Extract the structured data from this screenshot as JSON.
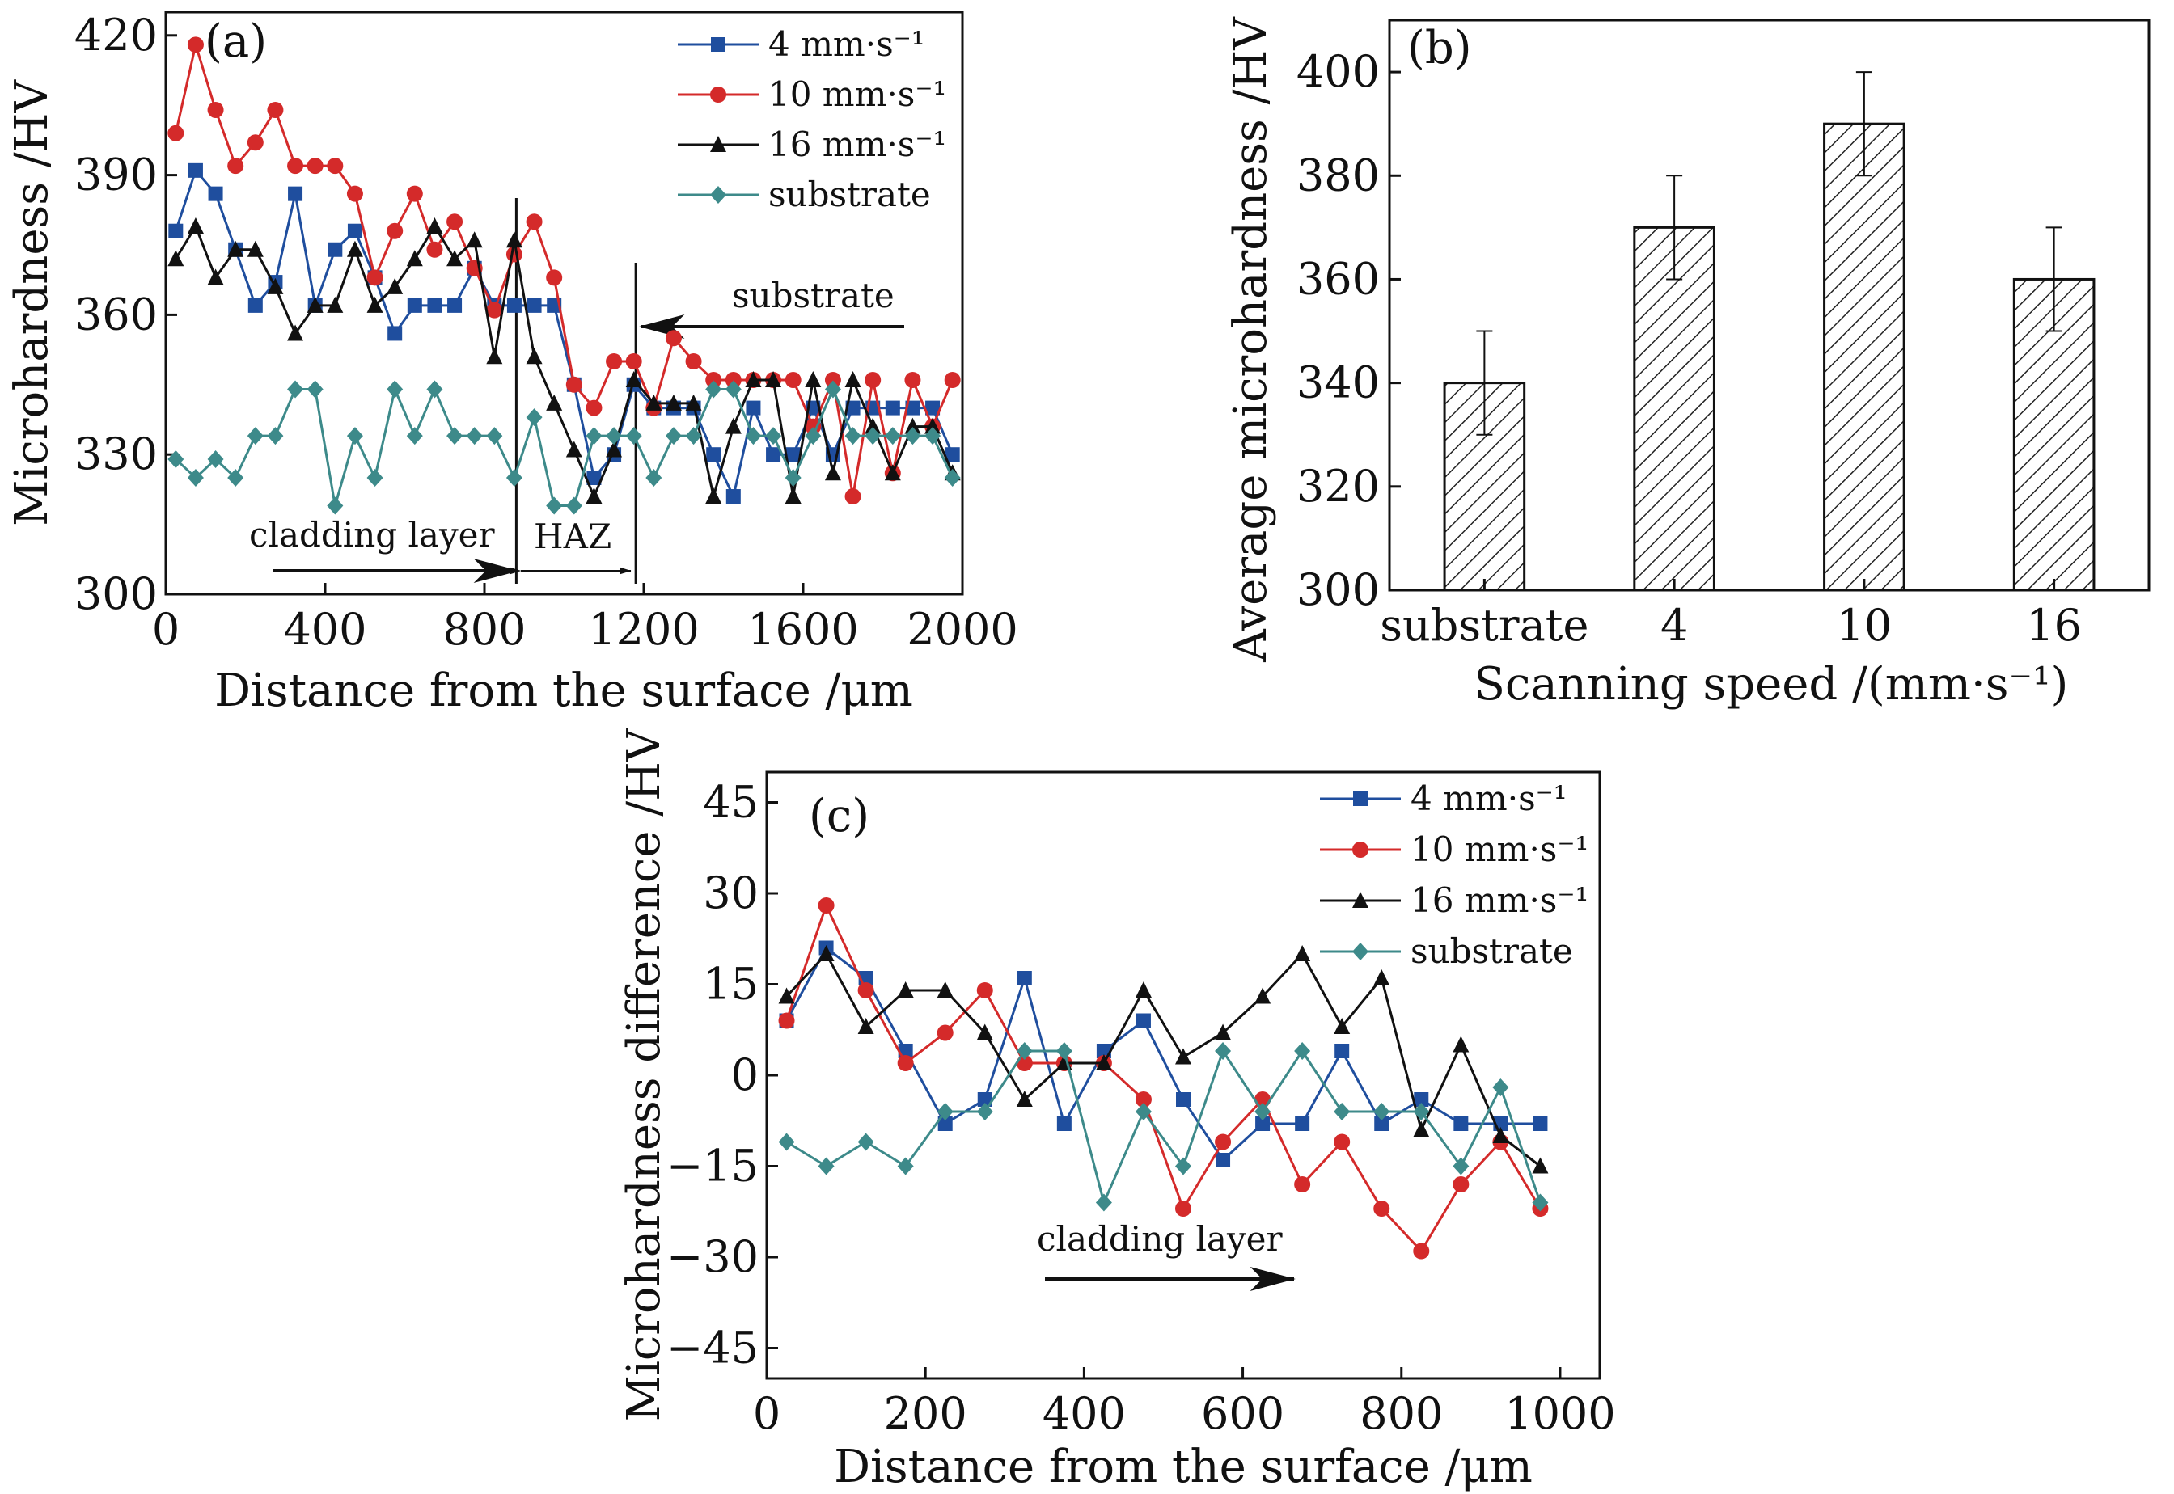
{
  "chart_data": [
    {
      "id": "a",
      "type": "line",
      "panel_label": "(a)",
      "xlabel": "Distance from the surface /μm",
      "ylabel": "Microhardness /HV",
      "xlim": [
        0,
        2000
      ],
      "ylim": [
        300,
        425
      ],
      "xticks": [
        0,
        400,
        800,
        1200,
        1600,
        2000
      ],
      "xtick_labels": [
        "0",
        "400",
        "800",
        "1200",
        "1600",
        "2000"
      ],
      "yticks": [
        300,
        330,
        360,
        390,
        420
      ],
      "ytick_labels": [
        "300",
        "330",
        "360",
        "390",
        "420"
      ],
      "grid": false,
      "legend_position": "top-right",
      "series": [
        {
          "name": "4 mm·s⁻¹",
          "color": "#1f4e9e",
          "marker": "square",
          "x": [
            25,
            75,
            125,
            175,
            225,
            275,
            325,
            375,
            425,
            475,
            525,
            575,
            625,
            675,
            725,
            775,
            825,
            875,
            925,
            975,
            1025,
            1075,
            1125,
            1175,
            1225,
            1275,
            1325,
            1375,
            1425,
            1475,
            1525,
            1575,
            1625,
            1675,
            1725,
            1775,
            1825,
            1875,
            1925,
            1975
          ],
          "y": [
            378,
            391,
            386,
            374,
            362,
            367,
            386,
            362,
            374,
            378,
            368,
            356,
            362,
            362,
            362,
            370,
            362,
            362,
            362,
            362,
            345,
            325,
            330,
            345,
            340,
            340,
            340,
            330,
            321,
            340,
            330,
            330,
            340,
            330,
            340,
            340,
            340,
            340,
            340,
            330
          ]
        },
        {
          "name": "10 mm·s⁻¹",
          "color": "#d42a2a",
          "marker": "circle",
          "x": [
            25,
            75,
            125,
            175,
            225,
            275,
            325,
            375,
            425,
            475,
            525,
            575,
            625,
            675,
            725,
            775,
            825,
            875,
            925,
            975,
            1025,
            1075,
            1125,
            1175,
            1225,
            1275,
            1325,
            1375,
            1425,
            1475,
            1525,
            1575,
            1625,
            1675,
            1725,
            1775,
            1825,
            1875,
            1925,
            1975
          ],
          "y": [
            399,
            418,
            404,
            392,
            397,
            404,
            392,
            392,
            392,
            386,
            368,
            378,
            386,
            374,
            380,
            370,
            361,
            373,
            380,
            368,
            345,
            340,
            350,
            350,
            340,
            355,
            350,
            346,
            346,
            346,
            346,
            346,
            336,
            346,
            321,
            346,
            326,
            346,
            336,
            346
          ]
        },
        {
          "name": "16 mm·s⁻¹",
          "color": "#111111",
          "marker": "triangle",
          "x": [
            25,
            75,
            125,
            175,
            225,
            275,
            325,
            375,
            425,
            475,
            525,
            575,
            625,
            675,
            725,
            775,
            825,
            875,
            925,
            975,
            1025,
            1075,
            1125,
            1175,
            1225,
            1275,
            1325,
            1375,
            1425,
            1475,
            1525,
            1575,
            1625,
            1675,
            1725,
            1775,
            1825,
            1875,
            1925,
            1975
          ],
          "y": [
            372,
            379,
            368,
            374,
            374,
            366,
            356,
            362,
            362,
            374,
            362,
            366,
            372,
            379,
            372,
            376,
            351,
            376,
            351,
            341,
            331,
            321,
            331,
            346,
            341,
            341,
            341,
            321,
            336,
            346,
            346,
            321,
            346,
            326,
            346,
            336,
            326,
            336,
            336,
            326
          ]
        },
        {
          "name": "substrate",
          "color": "#3d8a8a",
          "marker": "diamond",
          "x": [
            25,
            75,
            125,
            175,
            225,
            275,
            325,
            375,
            425,
            475,
            525,
            575,
            625,
            675,
            725,
            775,
            825,
            875,
            925,
            975,
            1025,
            1075,
            1125,
            1175,
            1225,
            1275,
            1325,
            1375,
            1425,
            1475,
            1525,
            1575,
            1625,
            1675,
            1725,
            1775,
            1825,
            1875,
            1925,
            1975
          ],
          "y": [
            329,
            325,
            329,
            325,
            334,
            334,
            344,
            344,
            319,
            334,
            325,
            344,
            334,
            344,
            334,
            334,
            334,
            325,
            338,
            319,
            319,
            334,
            334,
            334,
            325,
            334,
            334,
            344,
            344,
            334,
            334,
            325,
            334,
            344,
            334,
            334,
            334,
            334,
            334,
            325
          ]
        }
      ],
      "annotations": {
        "substrate_text": "substrate",
        "cladding_text": "cladding layer",
        "haz_text": "HAZ",
        "cladding_boundary_x": 880,
        "haz_boundary_x": 1180
      }
    },
    {
      "id": "b",
      "type": "bar",
      "panel_label": "(b)",
      "xlabel": "Scanning speed /(mm·s⁻¹)",
      "ylabel": "Average microhardness /HV",
      "categories": [
        "substrate",
        "4",
        "10",
        "16"
      ],
      "values": [
        340,
        370,
        390,
        360
      ],
      "errors": [
        10,
        10,
        10,
        10
      ],
      "ylim": [
        300,
        410
      ],
      "yticks": [
        300,
        320,
        340,
        360,
        380,
        400
      ],
      "ytick_labels": [
        "300",
        "320",
        "340",
        "360",
        "380",
        "400"
      ],
      "grid": false,
      "bar_fill": "hatched"
    },
    {
      "id": "c",
      "type": "line",
      "panel_label": "(c)",
      "xlabel": "Distance from the surface /μm",
      "ylabel": "Microhardness difference /HV",
      "xlim": [
        0,
        1050
      ],
      "ylim": [
        -50,
        50
      ],
      "xticks": [
        0,
        200,
        400,
        600,
        800,
        1000
      ],
      "xtick_labels": [
        "0",
        "200",
        "400",
        "600",
        "800",
        "1000"
      ],
      "yticks": [
        -45,
        -30,
        -15,
        0,
        15,
        30,
        45
      ],
      "ytick_labels": [
        "−45",
        "−30",
        "−15",
        "0",
        "15",
        "30",
        "45"
      ],
      "grid": false,
      "legend_position": "top-right",
      "series": [
        {
          "name": "4 mm·s⁻¹",
          "color": "#1f4e9e",
          "marker": "square",
          "x": [
            25,
            75,
            125,
            175,
            225,
            275,
            325,
            375,
            425,
            475,
            525,
            575,
            625,
            675,
            725,
            775,
            825,
            875,
            925,
            975
          ],
          "y": [
            9,
            21,
            16,
            4,
            -8,
            -4,
            16,
            -8,
            4,
            9,
            -4,
            -14,
            -8,
            -8,
            4,
            -8,
            -4,
            -8,
            -8,
            -8
          ]
        },
        {
          "name": "10 mm·s⁻¹",
          "color": "#d42a2a",
          "marker": "circle",
          "x": [
            25,
            75,
            125,
            175,
            225,
            275,
            325,
            375,
            425,
            475,
            525,
            575,
            625,
            675,
            725,
            775,
            825,
            875,
            925,
            975
          ],
          "y": [
            9,
            28,
            14,
            2,
            7,
            14,
            2,
            2,
            2,
            -4,
            -22,
            -11,
            -4,
            -18,
            -11,
            -22,
            -29,
            -18,
            -11,
            -22
          ]
        },
        {
          "name": "16 mm·s⁻¹",
          "color": "#111111",
          "marker": "triangle",
          "x": [
            25,
            75,
            125,
            175,
            225,
            275,
            325,
            375,
            425,
            475,
            525,
            575,
            625,
            675,
            725,
            775,
            825,
            875,
            925,
            975
          ],
          "y": [
            13,
            20,
            8,
            14,
            14,
            7,
            -4,
            2,
            2,
            14,
            3,
            7,
            13,
            20,
            8,
            16,
            -9,
            5,
            -10,
            -15
          ]
        },
        {
          "name": "substrate",
          "color": "#3d8a8a",
          "marker": "diamond",
          "x": [
            25,
            75,
            125,
            175,
            225,
            275,
            325,
            375,
            425,
            475,
            525,
            575,
            625,
            675,
            725,
            775,
            825,
            875,
            925,
            975
          ],
          "y": [
            -11,
            -15,
            -11,
            -15,
            -6,
            -6,
            4,
            4,
            -21,
            -6,
            -15,
            4,
            -6,
            4,
            -6,
            -6,
            -6,
            -15,
            -2,
            -21
          ]
        }
      ],
      "annotations": {
        "cladding_text": "cladding layer"
      }
    }
  ]
}
